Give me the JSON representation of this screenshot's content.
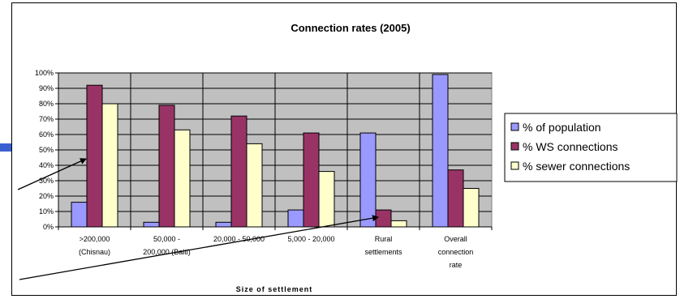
{
  "chart_data": {
    "type": "bar",
    "title": "Connection rates (2005)",
    "xlabel": "Size of settlement",
    "ylabel": "",
    "ylim": [
      0,
      100
    ],
    "yticks": [
      "0%",
      "10%",
      "20%",
      "30%",
      "40%",
      "50%",
      "60%",
      "70%",
      "80%",
      "90%",
      "100%"
    ],
    "categories": [
      [
        ">200,000",
        "(Chisnau)"
      ],
      [
        "50,000 -",
        "200,000 (Balti)"
      ],
      [
        "20,000 - 50,000"
      ],
      [
        "5,000 - 20,000"
      ],
      [
        "Rural",
        "settlements"
      ],
      [
        "Overall",
        "connection",
        "rate"
      ]
    ],
    "series": [
      {
        "name": "% of population",
        "color": "#9999ff",
        "values": [
          16,
          3,
          3,
          11,
          61,
          99
        ]
      },
      {
        "name": "% WS connections",
        "color": "#993366",
        "values": [
          92,
          79,
          72,
          61,
          11,
          37
        ]
      },
      {
        "name": "% sewer connections",
        "color": "#ffffcc",
        "values": [
          80,
          63,
          54,
          36,
          4,
          25
        ]
      }
    ],
    "grid": true,
    "legend_position": "right",
    "plot_background": "#c0c0c0"
  }
}
